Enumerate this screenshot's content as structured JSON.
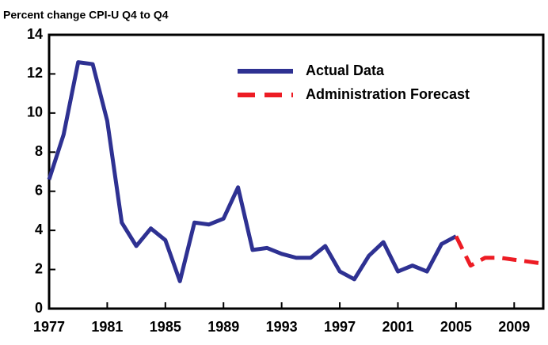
{
  "chart_data": {
    "type": "line",
    "subtitle": "Percent change CPI-U Q4 to Q4",
    "x": [
      1977,
      1978,
      1979,
      1980,
      1981,
      1982,
      1983,
      1984,
      1985,
      1986,
      1987,
      1988,
      1989,
      1990,
      1991,
      1992,
      1993,
      1994,
      1995,
      1996,
      1997,
      1998,
      1999,
      2000,
      2001,
      2002,
      2003,
      2004,
      2005,
      2006,
      2007,
      2008,
      2009,
      2010,
      2011
    ],
    "series": [
      {
        "name": "Actual Data",
        "color": "#2e3192",
        "dash": false,
        "values": [
          6.6,
          8.9,
          12.6,
          12.5,
          9.6,
          4.4,
          3.2,
          4.1,
          3.5,
          1.4,
          4.4,
          4.3,
          4.6,
          6.2,
          3.0,
          3.1,
          2.8,
          2.6,
          2.6,
          3.2,
          1.9,
          1.5,
          2.7,
          3.4,
          1.9,
          2.2,
          1.9,
          3.3,
          3.7,
          null,
          null,
          null,
          null,
          null,
          null
        ]
      },
      {
        "name": "Administration Forecast",
        "color": "#ed1c24",
        "dash": true,
        "values": [
          null,
          null,
          null,
          null,
          null,
          null,
          null,
          null,
          null,
          null,
          null,
          null,
          null,
          null,
          null,
          null,
          null,
          null,
          null,
          null,
          null,
          null,
          null,
          null,
          null,
          null,
          null,
          null,
          3.7,
          2.2,
          2.6,
          2.6,
          2.5,
          2.4,
          2.3
        ]
      }
    ],
    "xlim": [
      1977,
      2011
    ],
    "xticks": [
      1977,
      1981,
      1985,
      1989,
      1993,
      1997,
      2001,
      2005,
      2009
    ],
    "ylim": [
      0,
      14
    ],
    "yticks": [
      0,
      2,
      4,
      6,
      8,
      10,
      12,
      14
    ],
    "legend": "upper right"
  }
}
